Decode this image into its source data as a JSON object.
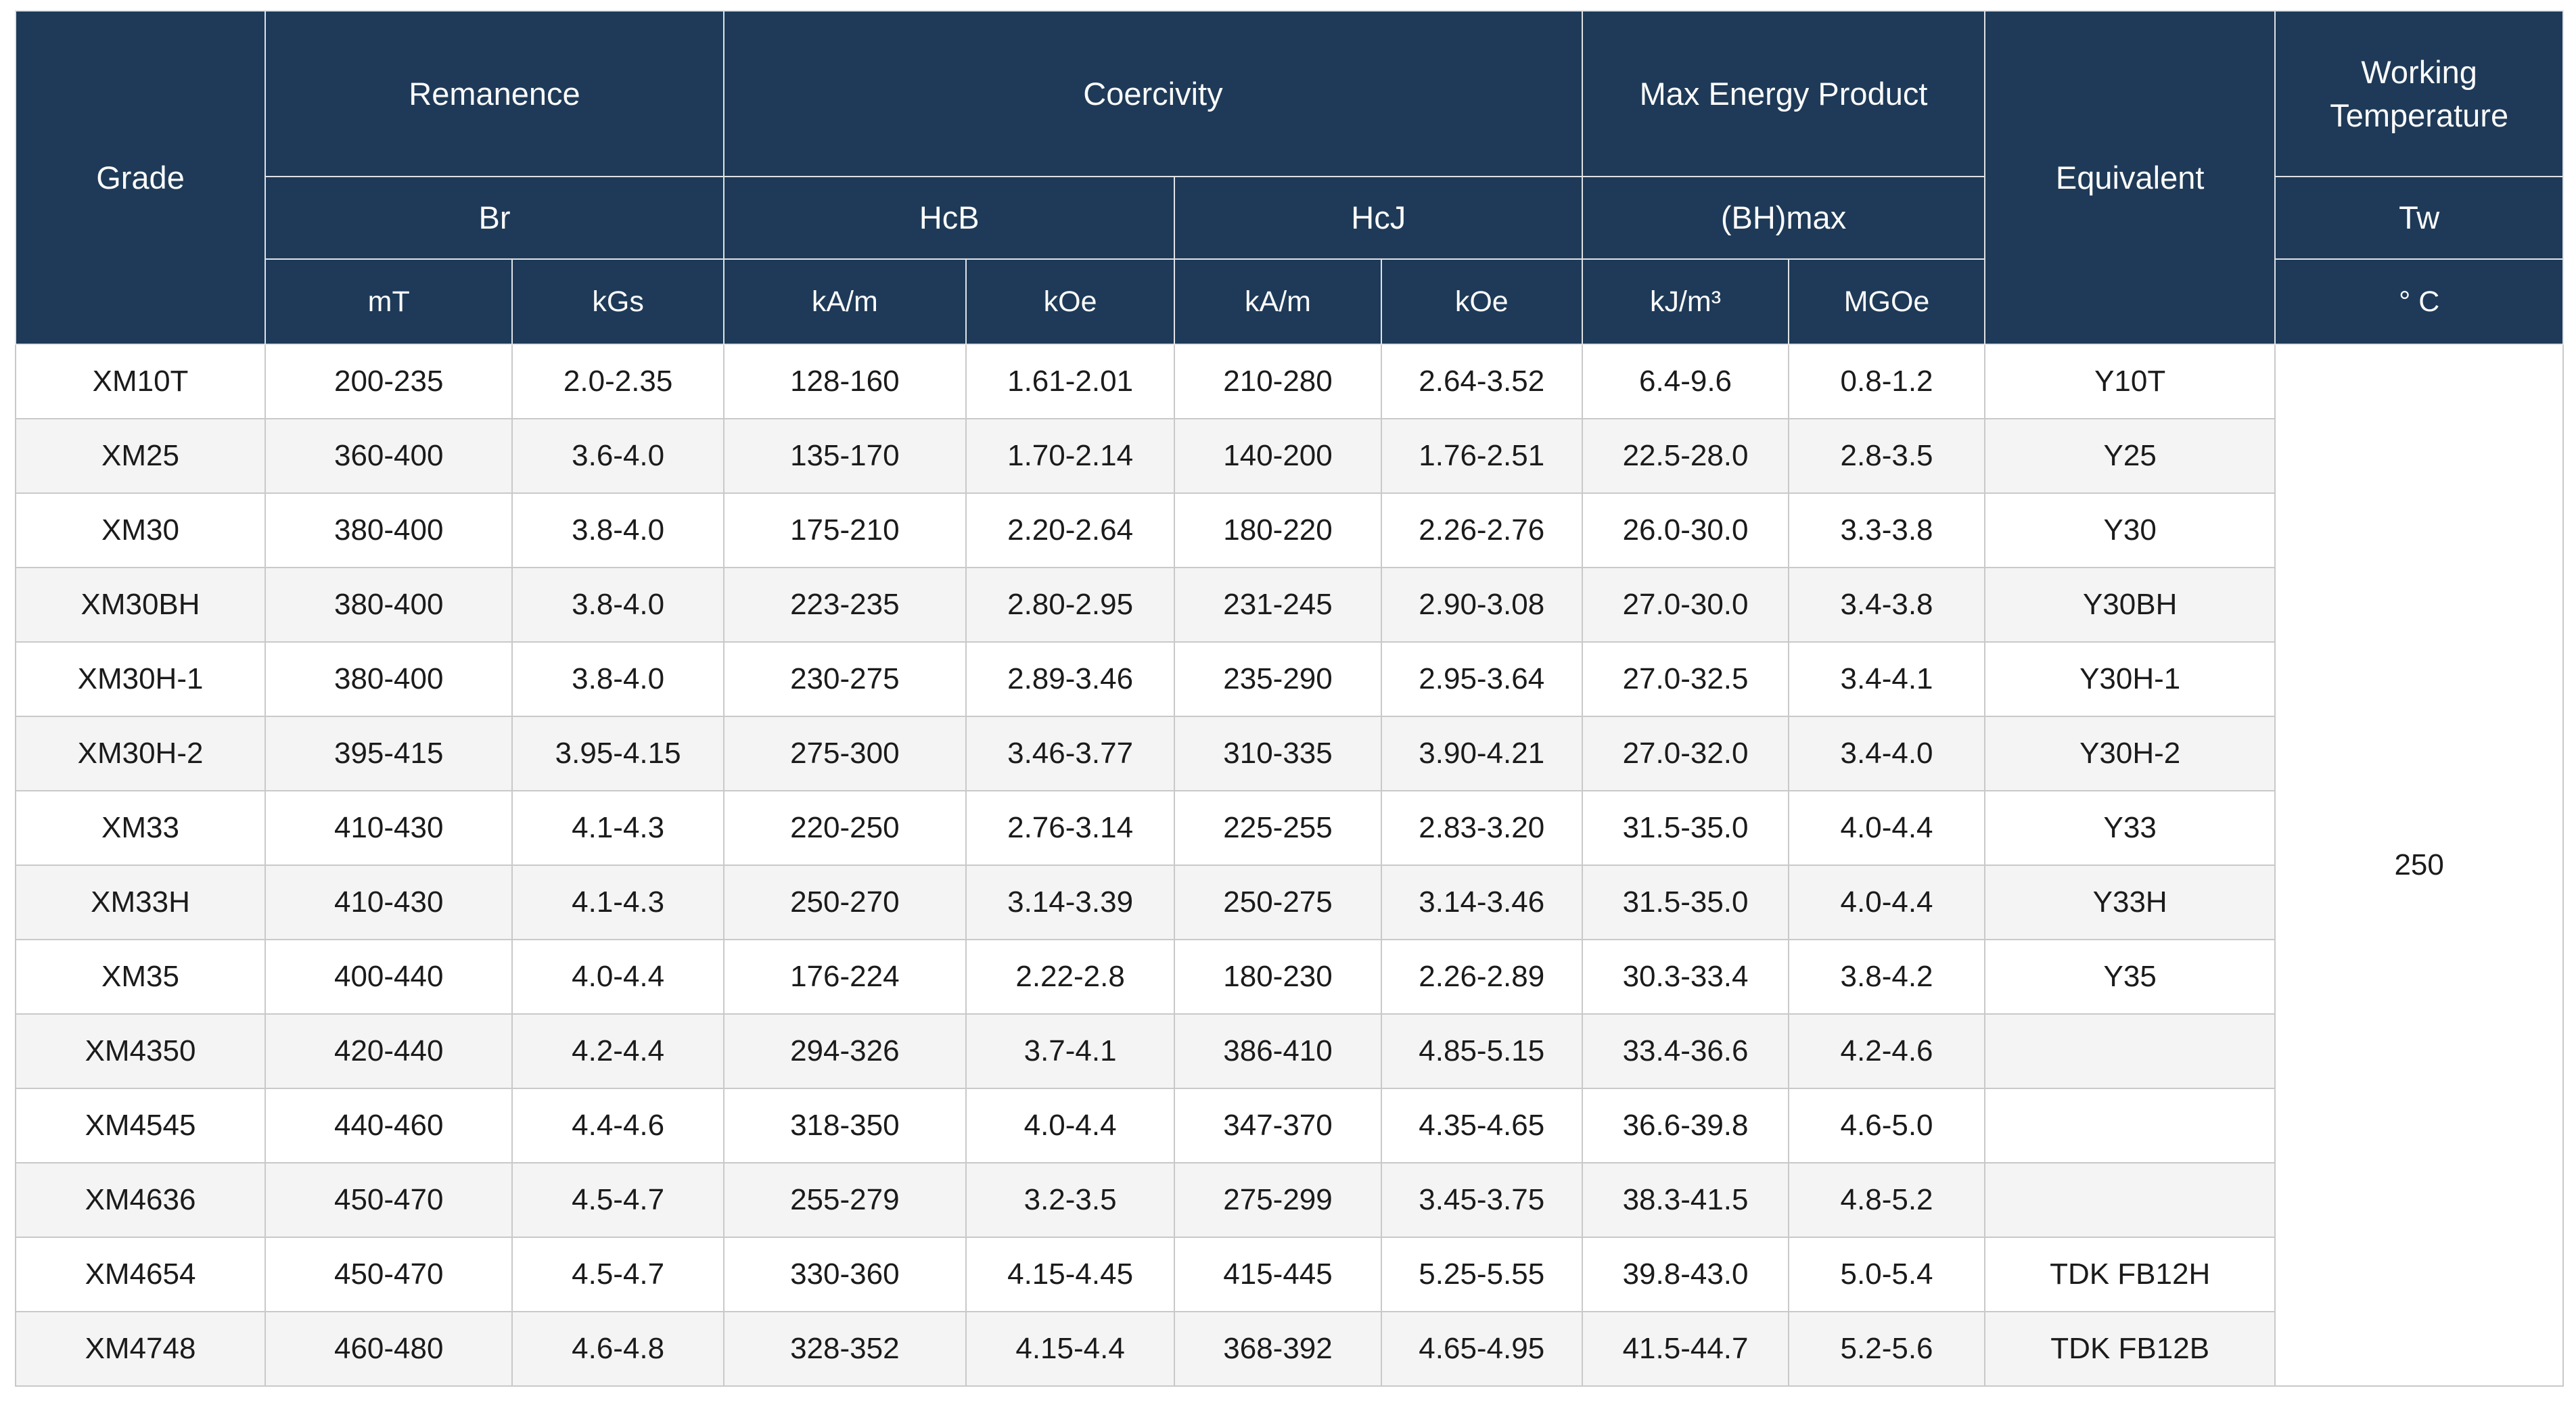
{
  "theme": {
    "header_bg": "#1e3a58",
    "header_text": "#fbfbfb",
    "row_bg": "#ffffff",
    "row_alt_bg": "#f4f4f4",
    "border": "#c9c9c9",
    "header_border": "#dfe2e6",
    "text": "#1b1b1b",
    "page_bg": "#ffffff"
  },
  "table": {
    "header": {
      "grade": "Grade",
      "remanence": "Remanence",
      "coercivity": "Coercivity",
      "max_energy_product": "Max Energy Product",
      "equivalent": "Equivalent",
      "working_temperature": "Working Temperature",
      "br": "Br",
      "hcb": "HcB",
      "hcj": "HcJ",
      "bhmax": "(BH)max",
      "tw": "Tw",
      "units": {
        "mt": "mT",
        "kgs": "kGs",
        "hcb_kam": "kA/m",
        "hcb_koe": "kOe",
        "hcj_kam": "kA/m",
        "hcj_koe": "kOe",
        "kjm3": "kJ/m³",
        "mgoe": "MGOe",
        "celsius": "° C"
      }
    },
    "working_temperature_value": "250",
    "rows": [
      {
        "grade": "XM10T",
        "mt": "200-235",
        "kgs": "2.0-2.35",
        "hcb_kam": "128-160",
        "hcb_koe": "1.61-2.01",
        "hcj_kam": "210-280",
        "hcj_koe": "2.64-3.52",
        "kjm3": "6.4-9.6",
        "mgoe": "0.8-1.2",
        "equivalent": "Y10T"
      },
      {
        "grade": "XM25",
        "mt": "360-400",
        "kgs": "3.6-4.0",
        "hcb_kam": "135-170",
        "hcb_koe": "1.70-2.14",
        "hcj_kam": "140-200",
        "hcj_koe": "1.76-2.51",
        "kjm3": "22.5-28.0",
        "mgoe": "2.8-3.5",
        "equivalent": "Y25"
      },
      {
        "grade": "XM30",
        "mt": "380-400",
        "kgs": "3.8-4.0",
        "hcb_kam": "175-210",
        "hcb_koe": "2.20-2.64",
        "hcj_kam": "180-220",
        "hcj_koe": "2.26-2.76",
        "kjm3": "26.0-30.0",
        "mgoe": "3.3-3.8",
        "equivalent": "Y30"
      },
      {
        "grade": "XM30BH",
        "mt": "380-400",
        "kgs": "3.8-4.0",
        "hcb_kam": "223-235",
        "hcb_koe": "2.80-2.95",
        "hcj_kam": "231-245",
        "hcj_koe": "2.90-3.08",
        "kjm3": "27.0-30.0",
        "mgoe": "3.4-3.8",
        "equivalent": "Y30BH"
      },
      {
        "grade": "XM30H-1",
        "mt": "380-400",
        "kgs": "3.8-4.0",
        "hcb_kam": "230-275",
        "hcb_koe": "2.89-3.46",
        "hcj_kam": "235-290",
        "hcj_koe": "2.95-3.64",
        "kjm3": "27.0-32.5",
        "mgoe": "3.4-4.1",
        "equivalent": "Y30H-1"
      },
      {
        "grade": "XM30H-2",
        "mt": "395-415",
        "kgs": "3.95-4.15",
        "hcb_kam": "275-300",
        "hcb_koe": "3.46-3.77",
        "hcj_kam": "310-335",
        "hcj_koe": "3.90-4.21",
        "kjm3": "27.0-32.0",
        "mgoe": "3.4-4.0",
        "equivalent": "Y30H-2"
      },
      {
        "grade": "XM33",
        "mt": "410-430",
        "kgs": "4.1-4.3",
        "hcb_kam": "220-250",
        "hcb_koe": "2.76-3.14",
        "hcj_kam": "225-255",
        "hcj_koe": "2.83-3.20",
        "kjm3": "31.5-35.0",
        "mgoe": "4.0-4.4",
        "equivalent": "Y33"
      },
      {
        "grade": "XM33H",
        "mt": "410-430",
        "kgs": "4.1-4.3",
        "hcb_kam": "250-270",
        "hcb_koe": "3.14-3.39",
        "hcj_kam": "250-275",
        "hcj_koe": "3.14-3.46",
        "kjm3": "31.5-35.0",
        "mgoe": "4.0-4.4",
        "equivalent": "Y33H"
      },
      {
        "grade": "XM35",
        "mt": "400-440",
        "kgs": "4.0-4.4",
        "hcb_kam": "176-224",
        "hcb_koe": "2.22-2.8",
        "hcj_kam": "180-230",
        "hcj_koe": "2.26-2.89",
        "kjm3": "30.3-33.4",
        "mgoe": "3.8-4.2",
        "equivalent": "Y35"
      },
      {
        "grade": "XM4350",
        "mt": "420-440",
        "kgs": "4.2-4.4",
        "hcb_kam": "294-326",
        "hcb_koe": "3.7-4.1",
        "hcj_kam": "386-410",
        "hcj_koe": "4.85-5.15",
        "kjm3": "33.4-36.6",
        "mgoe": "4.2-4.6",
        "equivalent": ""
      },
      {
        "grade": "XM4545",
        "mt": "440-460",
        "kgs": "4.4-4.6",
        "hcb_kam": "318-350",
        "hcb_koe": "4.0-4.4",
        "hcj_kam": "347-370",
        "hcj_koe": "4.35-4.65",
        "kjm3": "36.6-39.8",
        "mgoe": "4.6-5.0",
        "equivalent": ""
      },
      {
        "grade": "XM4636",
        "mt": "450-470",
        "kgs": "4.5-4.7",
        "hcb_kam": "255-279",
        "hcb_koe": "3.2-3.5",
        "hcj_kam": "275-299",
        "hcj_koe": "3.45-3.75",
        "kjm3": "38.3-41.5",
        "mgoe": "4.8-5.2",
        "equivalent": ""
      },
      {
        "grade": "XM4654",
        "mt": "450-470",
        "kgs": "4.5-4.7",
        "hcb_kam": "330-360",
        "hcb_koe": "4.15-4.45",
        "hcj_kam": "415-445",
        "hcj_koe": "5.25-5.55",
        "kjm3": "39.8-43.0",
        "mgoe": "5.0-5.4",
        "equivalent": "TDK FB12H"
      },
      {
        "grade": "XM4748",
        "mt": "460-480",
        "kgs": "4.6-4.8",
        "hcb_kam": "328-352",
        "hcb_koe": "4.15-4.4",
        "hcj_kam": "368-392",
        "hcj_koe": "4.65-4.95",
        "kjm3": "41.5-44.7",
        "mgoe": "5.2-5.6",
        "equivalent": "TDK FB12B"
      }
    ]
  },
  "chart_data": {
    "type": "table",
    "title": "Ferrite magnet grade specifications",
    "columns": [
      "Grade",
      "Remanence Br (mT)",
      "Remanence Br (kGs)",
      "Coercivity HcB (kA/m)",
      "Coercivity HcB (kOe)",
      "Coercivity HcJ (kA/m)",
      "Coercivity HcJ (kOe)",
      "Max Energy Product (BH)max (kJ/m³)",
      "Max Energy Product (BH)max (MGOe)",
      "Equivalent",
      "Working Temperature Tw (° C)"
    ],
    "working_temperature_all_rows": "250",
    "rows": [
      [
        "XM10T",
        "200-235",
        "2.0-2.35",
        "128-160",
        "1.61-2.01",
        "210-280",
        "2.64-3.52",
        "6.4-9.6",
        "0.8-1.2",
        "Y10T",
        "250"
      ],
      [
        "XM25",
        "360-400",
        "3.6-4.0",
        "135-170",
        "1.70-2.14",
        "140-200",
        "1.76-2.51",
        "22.5-28.0",
        "2.8-3.5",
        "Y25",
        "250"
      ],
      [
        "XM30",
        "380-400",
        "3.8-4.0",
        "175-210",
        "2.20-2.64",
        "180-220",
        "2.26-2.76",
        "26.0-30.0",
        "3.3-3.8",
        "Y30",
        "250"
      ],
      [
        "XM30BH",
        "380-400",
        "3.8-4.0",
        "223-235",
        "2.80-2.95",
        "231-245",
        "2.90-3.08",
        "27.0-30.0",
        "3.4-3.8",
        "Y30BH",
        "250"
      ],
      [
        "XM30H-1",
        "380-400",
        "3.8-4.0",
        "230-275",
        "2.89-3.46",
        "235-290",
        "2.95-3.64",
        "27.0-32.5",
        "3.4-4.1",
        "Y30H-1",
        "250"
      ],
      [
        "XM30H-2",
        "395-415",
        "3.95-4.15",
        "275-300",
        "3.46-3.77",
        "310-335",
        "3.90-4.21",
        "27.0-32.0",
        "3.4-4.0",
        "Y30H-2",
        "250"
      ],
      [
        "XM33",
        "410-430",
        "4.1-4.3",
        "220-250",
        "2.76-3.14",
        "225-255",
        "2.83-3.20",
        "31.5-35.0",
        "4.0-4.4",
        "Y33",
        "250"
      ],
      [
        "XM33H",
        "410-430",
        "4.1-4.3",
        "250-270",
        "3.14-3.39",
        "250-275",
        "3.14-3.46",
        "31.5-35.0",
        "4.0-4.4",
        "Y33H",
        "250"
      ],
      [
        "XM35",
        "400-440",
        "4.0-4.4",
        "176-224",
        "2.22-2.8",
        "180-230",
        "2.26-2.89",
        "30.3-33.4",
        "3.8-4.2",
        "Y35",
        "250"
      ],
      [
        "XM4350",
        "420-440",
        "4.2-4.4",
        "294-326",
        "3.7-4.1",
        "386-410",
        "4.85-5.15",
        "33.4-36.6",
        "4.2-4.6",
        "",
        "250"
      ],
      [
        "XM4545",
        "440-460",
        "4.4-4.6",
        "318-350",
        "4.0-4.4",
        "347-370",
        "4.35-4.65",
        "36.6-39.8",
        "4.6-5.0",
        "",
        "250"
      ],
      [
        "XM4636",
        "450-470",
        "4.5-4.7",
        "255-279",
        "3.2-3.5",
        "275-299",
        "3.45-3.75",
        "38.3-41.5",
        "4.8-5.2",
        "",
        "250"
      ],
      [
        "XM4654",
        "450-470",
        "4.5-4.7",
        "330-360",
        "4.15-4.45",
        "415-445",
        "5.25-5.55",
        "39.8-43.0",
        "5.0-5.4",
        "TDK FB12H",
        "250"
      ],
      [
        "XM4748",
        "460-480",
        "4.6-4.8",
        "328-352",
        "4.15-4.4",
        "368-392",
        "4.65-4.95",
        "41.5-44.7",
        "5.2-5.6",
        "TDK FB12B",
        "250"
      ]
    ]
  }
}
